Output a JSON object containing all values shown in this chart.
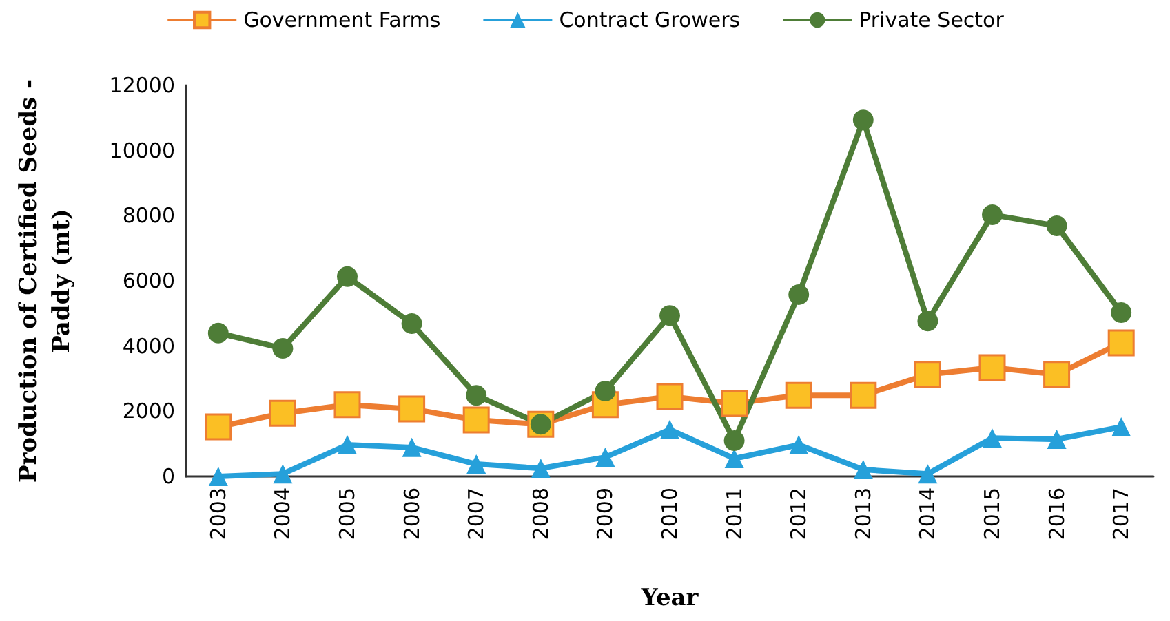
{
  "chart_data": {
    "type": "line",
    "xlabel": "Year",
    "ylabel": "Production of Certified Seeds - Paddy (mt)",
    "categories": [
      "2003",
      "2004",
      "2005",
      "2006",
      "2007",
      "2008",
      "2009",
      "2010",
      "2011",
      "2012",
      "2013",
      "2014",
      "2015",
      "2016",
      "2017"
    ],
    "series": [
      {
        "name": "Government Farms",
        "color": "#ed7d31",
        "marker": "square",
        "values": [
          1520,
          1940,
          2200,
          2070,
          1730,
          1600,
          2200,
          2450,
          2240,
          2490,
          2490,
          3130,
          3340,
          3130,
          4100
        ]
      },
      {
        "name": "Contract Growers",
        "color": "#26a0da",
        "marker": "triangle",
        "values": [
          0,
          80,
          970,
          890,
          380,
          250,
          590,
          1440,
          550,
          970,
          210,
          80,
          1180,
          1140,
          1520
        ]
      },
      {
        "name": "Private Sector",
        "color": "#4e7d37",
        "marker": "circle",
        "values": [
          4400,
          3930,
          6130,
          4690,
          2490,
          1600,
          2620,
          4940,
          1100,
          5580,
          10940,
          4770,
          8030,
          7690,
          5030
        ]
      }
    ],
    "ylim": [
      0,
      12000
    ],
    "yticks": [
      0,
      2000,
      4000,
      6000,
      8000,
      10000,
      12000
    ],
    "grid": false,
    "legend": "top",
    "line_style": "solid"
  }
}
